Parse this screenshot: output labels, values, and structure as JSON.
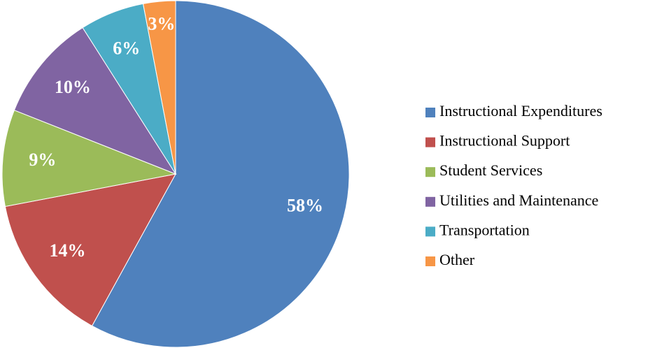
{
  "chart_data": {
    "type": "pie",
    "categories": [
      "Instructional Expenditures",
      "Instructional Support",
      "Student Services",
      "Utilities and Maintenance",
      "Transportation",
      "Other"
    ],
    "values": [
      58,
      14,
      9,
      10,
      6,
      3
    ],
    "value_labels": [
      "58%",
      "14%",
      "9%",
      "10%",
      "6%",
      "3%"
    ],
    "colors": [
      "#4f81bd",
      "#c0504d",
      "#9bbb59",
      "#8064a2",
      "#4bacc6",
      "#f79646"
    ],
    "legend": "right"
  }
}
